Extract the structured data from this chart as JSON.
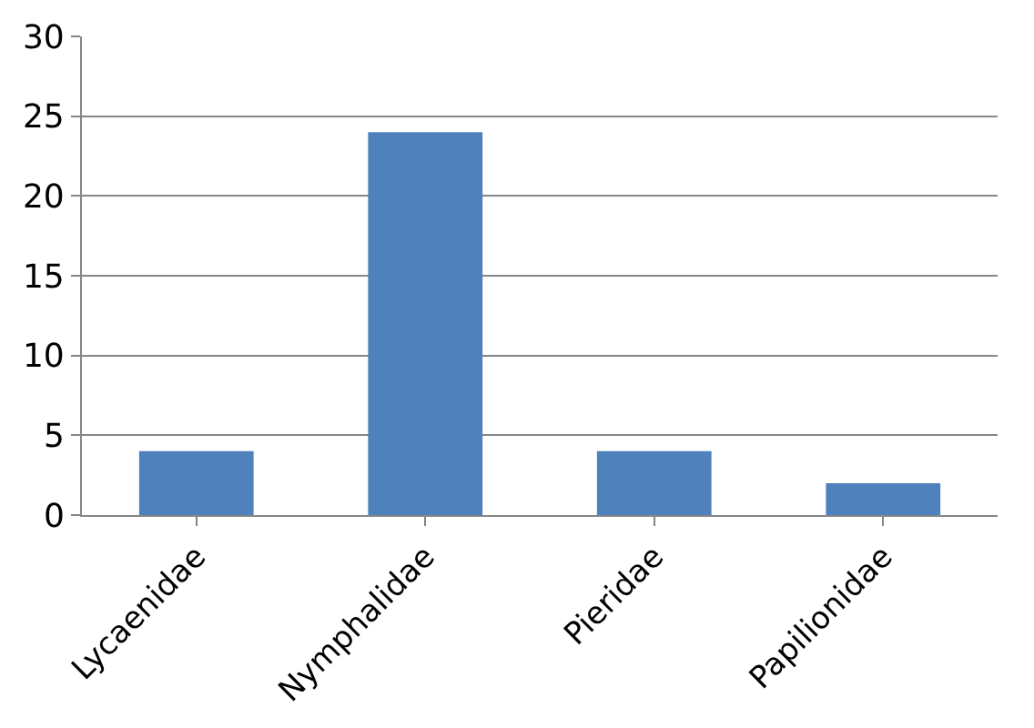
{
  "chart_data": {
    "type": "bar",
    "categories": [
      "Lycaenidae",
      "Nymphalidae",
      "Pieridae",
      "Papilionidae"
    ],
    "values": [
      4,
      24,
      4,
      2
    ],
    "color": "#4f81bd",
    "ylim": [
      0,
      30
    ],
    "yticks": [
      0,
      5,
      10,
      15,
      20,
      25,
      30
    ],
    "grid": "y"
  }
}
